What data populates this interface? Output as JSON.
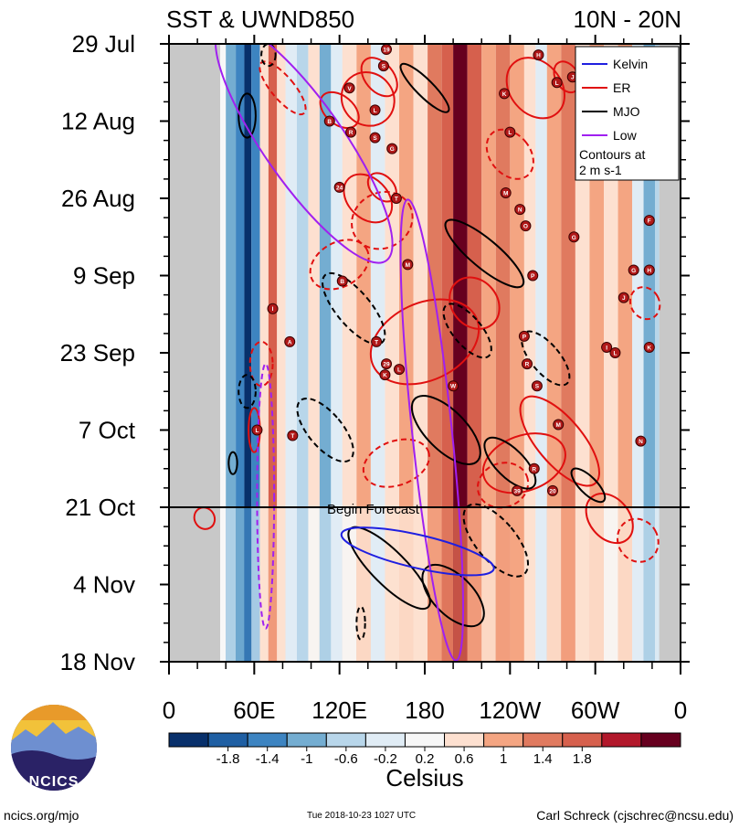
{
  "chart_data": {
    "type": "heatmap",
    "title_left": "SST & UWND850",
    "title_right": "10N - 20N",
    "x_tick_labels": [
      "0",
      "60E",
      "120E",
      "180",
      "120W",
      "60W",
      "0"
    ],
    "x_range_deg": [
      0,
      360
    ],
    "y_tick_labels": [
      "29 Jul",
      "12 Aug",
      "26 Aug",
      "9 Sep",
      "23 Sep",
      "7 Oct",
      "21 Oct",
      "4 Nov",
      "18 Nov"
    ],
    "y_range_days": [
      0,
      112
    ],
    "forecast_day": 84,
    "forecast_label": "Begin Forecast",
    "legend": {
      "entries": [
        {
          "name": "Kelvin",
          "color": "#1f1fe0"
        },
        {
          "name": "ER",
          "color": "#e01010"
        },
        {
          "name": "MJO",
          "color": "#000000"
        },
        {
          "name": "Low",
          "color": "#a020f0"
        }
      ],
      "note_line1": "Contours at",
      "note_line2": "2 m s-1",
      "placement": "top-right"
    },
    "colorbar": {
      "label": "Celsius",
      "tick_labels": [
        "-1.8",
        "-1.4",
        "-1",
        "-0.6",
        "-0.2",
        "0.2",
        "0.6",
        "1",
        "1.4",
        "1.8"
      ],
      "colors": [
        "#08306b",
        "#1f5fa3",
        "#3d84c1",
        "#74add1",
        "#b8d6ea",
        "#e0ecf5",
        "#f7f7f7",
        "#fde0d0",
        "#f4a582",
        "#e07a5f",
        "#d6604d",
        "#b2182b",
        "#67001f"
      ]
    },
    "land_mask_deg": [
      [
        0,
        36
      ],
      [
        345,
        360
      ]
    ],
    "sst_bands": [
      {
        "lon": 40,
        "anom": -1.0
      },
      {
        "lon": 47,
        "anom": -1.4
      },
      {
        "lon": 53,
        "anom": -1.9
      },
      {
        "lon": 58,
        "anom": -1.2
      },
      {
        "lon": 64,
        "anom": 0.4
      },
      {
        "lon": 70,
        "anom": 1.2
      },
      {
        "lon": 76,
        "anom": 0.3
      },
      {
        "lon": 82,
        "anom": -0.4
      },
      {
        "lon": 90,
        "anom": -0.8
      },
      {
        "lon": 98,
        "anom": 0.2
      },
      {
        "lon": 106,
        "anom": -1.0
      },
      {
        "lon": 114,
        "anom": -0.4
      },
      {
        "lon": 122,
        "anom": 0.2
      },
      {
        "lon": 132,
        "anom": 0.6
      },
      {
        "lon": 142,
        "anom": -0.5
      },
      {
        "lon": 152,
        "anom": 0.3
      },
      {
        "lon": 162,
        "anom": 0.7
      },
      {
        "lon": 172,
        "anom": 0.5
      },
      {
        "lon": 182,
        "anom": 1.0
      },
      {
        "lon": 192,
        "anom": 1.4
      },
      {
        "lon": 200,
        "anom": 1.9
      },
      {
        "lon": 210,
        "anom": 1.2
      },
      {
        "lon": 220,
        "anom": 0.6
      },
      {
        "lon": 230,
        "anom": 1.0
      },
      {
        "lon": 240,
        "anom": 0.8
      },
      {
        "lon": 250,
        "anom": 0.3
      },
      {
        "lon": 258,
        "anom": -0.3
      },
      {
        "lon": 266,
        "anom": 0.6
      },
      {
        "lon": 276,
        "anom": 1.0
      },
      {
        "lon": 286,
        "anom": 0.5
      },
      {
        "lon": 296,
        "anom": 0.7
      },
      {
        "lon": 306,
        "anom": 0.2
      },
      {
        "lon": 316,
        "anom": 0.6
      },
      {
        "lon": 326,
        "anom": -0.5
      },
      {
        "lon": 334,
        "anom": -1.0
      },
      {
        "lon": 342,
        "anom": -0.6
      }
    ],
    "contours": [
      {
        "kind": "ER",
        "dashed": false,
        "lon": 120,
        "day": 12,
        "rlon": 10,
        "rday": 4,
        "rot": -50
      },
      {
        "kind": "ER",
        "dashed": false,
        "lon": 140,
        "day": 10,
        "rlon": 18,
        "rday": 5,
        "rot": -40
      },
      {
        "kind": "ER",
        "dashed": false,
        "lon": 148,
        "day": 6,
        "rlon": 10,
        "rday": 4,
        "rot": -40
      },
      {
        "kind": "ER",
        "dashed": false,
        "lon": 140,
        "day": 28,
        "rlon": 14,
        "rday": 5,
        "rot": -45
      },
      {
        "kind": "ER",
        "dashed": false,
        "lon": 150,
        "day": 26,
        "rlon": 8,
        "rday": 3,
        "rot": -45
      },
      {
        "kind": "ER",
        "dashed": false,
        "lon": 258,
        "day": 8,
        "rlon": 18,
        "rday": 6,
        "rot": -40
      },
      {
        "kind": "ER",
        "dashed": false,
        "lon": 280,
        "day": 6,
        "rlon": 8,
        "rday": 3,
        "rot": -30
      },
      {
        "kind": "ER",
        "dashed": false,
        "lon": 180,
        "day": 54,
        "rlon": 40,
        "rday": 7,
        "rot": -25
      },
      {
        "kind": "ER",
        "dashed": false,
        "lon": 215,
        "day": 47,
        "rlon": 16,
        "rday": 5,
        "rot": -40
      },
      {
        "kind": "ER",
        "dashed": false,
        "lon": 250,
        "day": 76,
        "rlon": 30,
        "rday": 5,
        "rot": -20
      },
      {
        "kind": "ER",
        "dashed": false,
        "lon": 275,
        "day": 72,
        "rlon": 16,
        "rday": 10,
        "rot": -40
      },
      {
        "kind": "ER",
        "dashed": false,
        "lon": 310,
        "day": 86,
        "rlon": 14,
        "rday": 5,
        "rot": -40
      },
      {
        "kind": "ER",
        "dashed": false,
        "lon": 60,
        "day": 70,
        "rlon": 4,
        "rday": 4,
        "rot": 0
      },
      {
        "kind": "ER",
        "dashed": false,
        "lon": 25,
        "day": 86,
        "rlon": 7,
        "rday": 2,
        "rot": -30
      },
      {
        "kind": "ER",
        "dashed": true,
        "lon": 80,
        "day": 8,
        "rlon": 8,
        "rday": 6,
        "rot": -40
      },
      {
        "kind": "ER",
        "dashed": true,
        "lon": 150,
        "day": 32,
        "rlon": 22,
        "rday": 5,
        "rot": -30
      },
      {
        "kind": "ER",
        "dashed": true,
        "lon": 120,
        "day": 40,
        "rlon": 22,
        "rday": 4,
        "rot": -30
      },
      {
        "kind": "ER",
        "dashed": true,
        "lon": 240,
        "day": 20,
        "rlon": 14,
        "rday": 5,
        "rot": -40
      },
      {
        "kind": "ER",
        "dashed": true,
        "lon": 160,
        "day": 76,
        "rlon": 24,
        "rday": 4,
        "rot": -20
      },
      {
        "kind": "ER",
        "dashed": true,
        "lon": 235,
        "day": 80,
        "rlon": 18,
        "rday": 4,
        "rot": -20
      },
      {
        "kind": "ER",
        "dashed": true,
        "lon": 335,
        "day": 47,
        "rlon": 10,
        "rday": 3,
        "rot": -30
      },
      {
        "kind": "ER",
        "dashed": true,
        "lon": 330,
        "day": 90,
        "rlon": 14,
        "rday": 4,
        "rot": -30
      },
      {
        "kind": "ER",
        "dashed": true,
        "lon": 65,
        "day": 58,
        "rlon": 8,
        "rday": 4,
        "rot": 0
      },
      {
        "kind": "MJO",
        "dashed": false,
        "lon": 55,
        "day": 13,
        "rlon": 6,
        "rday": 4,
        "rot": 0
      },
      {
        "kind": "MJO",
        "dashed": false,
        "lon": 180,
        "day": 8,
        "rlon": 6,
        "rday": 6,
        "rot": -45
      },
      {
        "kind": "MJO",
        "dashed": false,
        "lon": 222,
        "day": 38,
        "rlon": 10,
        "rday": 9,
        "rot": -50
      },
      {
        "kind": "MJO",
        "dashed": false,
        "lon": 195,
        "day": 70,
        "rlon": 14,
        "rday": 8,
        "rot": -45
      },
      {
        "kind": "MJO",
        "dashed": false,
        "lon": 240,
        "day": 76,
        "rlon": 10,
        "rday": 6,
        "rot": -45
      },
      {
        "kind": "MJO",
        "dashed": false,
        "lon": 295,
        "day": 80,
        "rlon": 6,
        "rday": 4,
        "rot": -45
      },
      {
        "kind": "MJO",
        "dashed": false,
        "lon": 155,
        "day": 95,
        "rlon": 12,
        "rday": 10,
        "rot": -45
      },
      {
        "kind": "MJO",
        "dashed": false,
        "lon": 200,
        "day": 100,
        "rlon": 14,
        "rday": 7,
        "rot": -45
      },
      {
        "kind": "MJO",
        "dashed": false,
        "lon": 45,
        "day": 76,
        "rlon": 3,
        "rday": 2,
        "rot": 0
      },
      {
        "kind": "MJO",
        "dashed": true,
        "lon": 130,
        "day": 48,
        "rlon": 12,
        "rday": 8,
        "rot": -40
      },
      {
        "kind": "MJO",
        "dashed": true,
        "lon": 110,
        "day": 70,
        "rlon": 12,
        "rday": 7,
        "rot": -40
      },
      {
        "kind": "MJO",
        "dashed": true,
        "lon": 210,
        "day": 52,
        "rlon": 10,
        "rday": 6,
        "rot": -40
      },
      {
        "kind": "MJO",
        "dashed": true,
        "lon": 265,
        "day": 57,
        "rlon": 10,
        "rday": 6,
        "rot": -40
      },
      {
        "kind": "MJO",
        "dashed": true,
        "lon": 230,
        "day": 90,
        "rlon": 14,
        "rday": 8,
        "rot": -40
      },
      {
        "kind": "MJO",
        "dashed": true,
        "lon": 55,
        "day": 63,
        "rlon": 6,
        "rday": 3,
        "rot": 0
      },
      {
        "kind": "MJO",
        "dashed": true,
        "lon": 70,
        "day": 2,
        "rlon": 5,
        "rday": 2,
        "rot": 0
      },
      {
        "kind": "MJO",
        "dashed": true,
        "lon": 135,
        "day": 105,
        "rlon": 3,
        "rday": 3,
        "rot": 0
      },
      {
        "kind": "Low",
        "dashed": false,
        "lon": 95,
        "day": 18,
        "rlon": 28,
        "rday": 26,
        "rot": -35
      },
      {
        "kind": "Low",
        "dashed": false,
        "lon": 185,
        "day": 70,
        "rlon": 14,
        "rday": 42,
        "rot": -6
      },
      {
        "kind": "Low",
        "dashed": true,
        "lon": 68,
        "day": 82,
        "rlon": 6,
        "rday": 24,
        "rot": 0
      },
      {
        "kind": "Kelvin",
        "dashed": false,
        "lon": 175,
        "day": 92,
        "rlon": 55,
        "rday": 3,
        "rot": 13
      }
    ],
    "storms": [
      {
        "lon": 153,
        "day": 1,
        "label": "19"
      },
      {
        "lon": 151,
        "day": 4,
        "label": "S"
      },
      {
        "lon": 127,
        "day": 8,
        "label": "V"
      },
      {
        "lon": 145,
        "day": 12,
        "label": "L"
      },
      {
        "lon": 113,
        "day": 14,
        "label": "B"
      },
      {
        "lon": 128,
        "day": 16,
        "label": "R"
      },
      {
        "lon": 145,
        "day": 17,
        "label": "S"
      },
      {
        "lon": 157,
        "day": 19,
        "label": "G"
      },
      {
        "lon": 120,
        "day": 26,
        "label": "24"
      },
      {
        "lon": 160,
        "day": 28,
        "label": "T"
      },
      {
        "lon": 260,
        "day": 2,
        "label": "H"
      },
      {
        "lon": 284,
        "day": 6,
        "label": "J"
      },
      {
        "lon": 273,
        "day": 7,
        "label": "L"
      },
      {
        "lon": 236,
        "day": 9,
        "label": "K"
      },
      {
        "lon": 240,
        "day": 16,
        "label": "L"
      },
      {
        "lon": 237,
        "day": 27,
        "label": "M"
      },
      {
        "lon": 247,
        "day": 30,
        "label": "N"
      },
      {
        "lon": 251,
        "day": 33,
        "label": "O"
      },
      {
        "lon": 285,
        "day": 35,
        "label": "G"
      },
      {
        "lon": 338,
        "day": 32,
        "label": "F"
      },
      {
        "lon": 168,
        "day": 40,
        "label": "M"
      },
      {
        "lon": 122,
        "day": 43,
        "label": "B"
      },
      {
        "lon": 256,
        "day": 42,
        "label": "P"
      },
      {
        "lon": 327,
        "day": 41,
        "label": "G"
      },
      {
        "lon": 338,
        "day": 41,
        "label": "H"
      },
      {
        "lon": 320,
        "day": 46,
        "label": "J"
      },
      {
        "lon": 73,
        "day": 48,
        "label": "I"
      },
      {
        "lon": 85,
        "day": 54,
        "label": "A"
      },
      {
        "lon": 146,
        "day": 54,
        "label": "T"
      },
      {
        "lon": 250,
        "day": 53,
        "label": "P"
      },
      {
        "lon": 308,
        "day": 55,
        "label": "I"
      },
      {
        "lon": 314,
        "day": 56,
        "label": "L"
      },
      {
        "lon": 338,
        "day": 55,
        "label": "K"
      },
      {
        "lon": 153,
        "day": 58,
        "label": "29"
      },
      {
        "lon": 152,
        "day": 60,
        "label": "K"
      },
      {
        "lon": 162,
        "day": 59,
        "label": "L"
      },
      {
        "lon": 252,
        "day": 58,
        "label": "R"
      },
      {
        "lon": 200,
        "day": 62,
        "label": "W"
      },
      {
        "lon": 259,
        "day": 62,
        "label": "S"
      },
      {
        "lon": 62,
        "day": 70,
        "label": "L"
      },
      {
        "lon": 87,
        "day": 71,
        "label": "T"
      },
      {
        "lon": 274,
        "day": 69,
        "label": "M"
      },
      {
        "lon": 332,
        "day": 72,
        "label": "N"
      },
      {
        "lon": 257,
        "day": 77,
        "label": "R"
      },
      {
        "lon": 245,
        "day": 81,
        "label": "39"
      },
      {
        "lon": 270,
        "day": 81,
        "label": "20"
      }
    ]
  },
  "footer": {
    "logo_text": "NCICS",
    "site_url": "ncics.org/mjo",
    "timestamp": "Tue 2018-10-23 1027 UTC",
    "author": "Carl Schreck (cjschrec@ncsu.edu)"
  }
}
